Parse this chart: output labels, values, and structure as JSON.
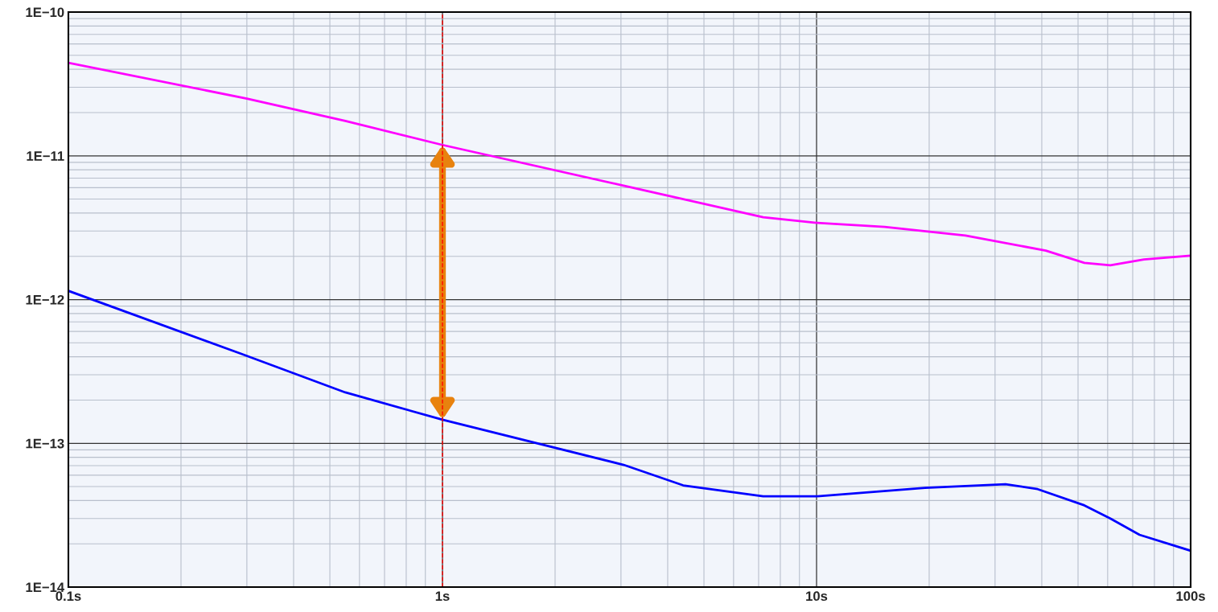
{
  "chart_data": {
    "type": "line",
    "xlim": [
      0.1,
      100
    ],
    "ylim": [
      1e-14,
      1e-10
    ],
    "log": "xy",
    "grid": true,
    "marker": "none",
    "line_style": "solid",
    "xticks": [
      {
        "value": 0.1,
        "label": "0.1s"
      },
      {
        "value": 1,
        "label": "1s"
      },
      {
        "value": 10,
        "label": "10s"
      },
      {
        "value": 100,
        "label": "100s"
      }
    ],
    "yticks": [
      {
        "value": 1e-14,
        "label": "1E−14"
      },
      {
        "value": 1e-13,
        "label": "1E−13"
      },
      {
        "value": 1e-12,
        "label": "1E−12"
      },
      {
        "value": 1e-11,
        "label": "1E−11"
      },
      {
        "value": 1e-10,
        "label": "1E−10"
      }
    ],
    "series": [
      {
        "color": "#ff00ff",
        "x": [
          0.1,
          0.3,
          0.55,
          1,
          3.05,
          7.2,
          10,
          15.2,
          25,
          41,
          52,
          61,
          75,
          100
        ],
        "values": [
          4.44e-11,
          2.5e-11,
          1.75e-11,
          1.19e-11,
          6.2e-12,
          3.74e-12,
          3.42e-12,
          3.2e-12,
          2.79e-12,
          2.19e-12,
          1.8e-12,
          1.73e-12,
          1.9e-12,
          2.02e-12
        ]
      },
      {
        "color": "#0000ff",
        "x": [
          0.1,
          0.29,
          0.55,
          1,
          3.05,
          4.4,
          7.2,
          10,
          19.5,
          32,
          39,
          52,
          61,
          73,
          100
        ],
        "values": [
          1.15e-12,
          4.19e-13,
          2.26e-13,
          1.46e-13,
          7.08e-14,
          5.1e-14,
          4.28e-14,
          4.28e-14,
          4.9e-14,
          5.2e-14,
          4.8e-14,
          3.7e-14,
          3e-14,
          2.31e-14,
          1.79e-14
        ]
      }
    ],
    "ref_lines": [
      {
        "axis": "x",
        "value": 1,
        "color": "#ff0000",
        "line_style": "dashed"
      }
    ]
  }
}
